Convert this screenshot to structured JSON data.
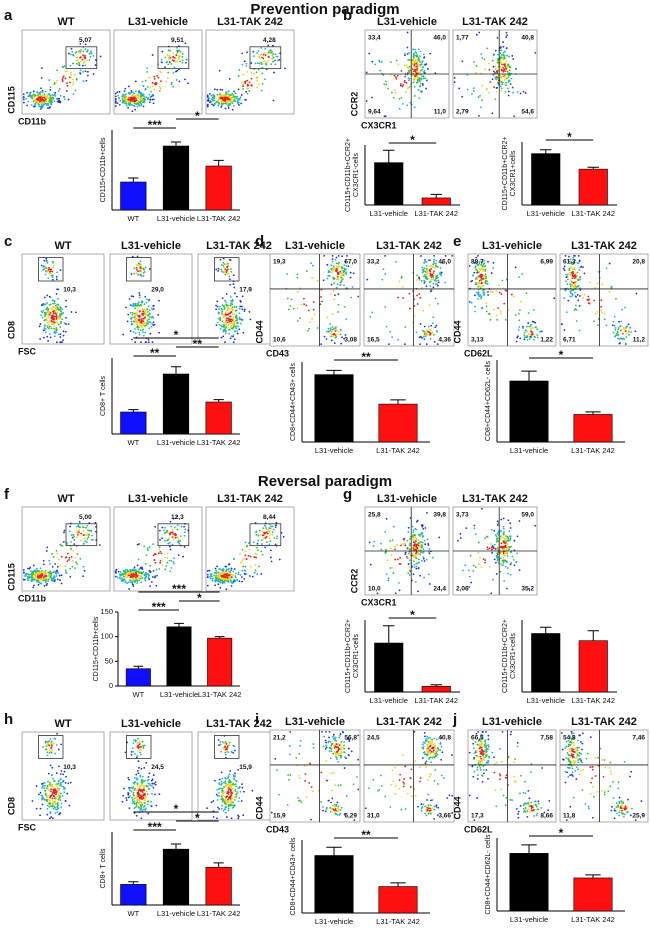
{
  "headings": [
    "Prevention paradigm",
    "Reversal paradigm"
  ],
  "panels": [
    {
      "letter": "a",
      "y_label": "CD115",
      "x_label": "CD11b",
      "plots": [
        {
          "title": "WT",
          "gate": "5,07"
        },
        {
          "title": "L31-vehicle",
          "gate": "9,51"
        },
        {
          "title": "L31-TAK 242",
          "gate": "4,28"
        }
      ]
    },
    {
      "letter": "b",
      "y_label": "CCR2",
      "x_label": "CX3CR1",
      "plots": [
        {
          "title": "L31-vehicle",
          "quadrants": [
            "33,4",
            "46,0",
            "9,64",
            "11,0"
          ]
        },
        {
          "title": "L31-TAK 242",
          "quadrants": [
            "1,77",
            "40,8",
            "2,79",
            "54,6"
          ]
        }
      ]
    },
    {
      "letter": "c",
      "y_label": "CD8",
      "x_label": "FSC",
      "plots": [
        {
          "title": "WT",
          "gate": "10,3"
        },
        {
          "title": "L31-vehicle",
          "gate": "29,0"
        },
        {
          "title": "L31-TAK 242",
          "gate": "17,9"
        }
      ]
    },
    {
      "letter": "d",
      "y_label": "CD44",
      "x_label": "CD43",
      "plots": [
        {
          "title": "L31-vehicle",
          "quadrants": [
            "19,3",
            "67,0",
            "10,6",
            "3,08"
          ]
        },
        {
          "title": "L31-TAK 242",
          "quadrants": [
            "33,2",
            "46,0",
            "16,5",
            "4,36"
          ]
        }
      ]
    },
    {
      "letter": "e",
      "y_label": "CD44",
      "x_label": "CD62L",
      "plots": [
        {
          "title": "L31-vehicle",
          "quadrants": [
            "88,7",
            "6,99",
            "3,13",
            "1,22"
          ]
        },
        {
          "title": "L31-TAK 242",
          "quadrants": [
            "61,3",
            "20,8",
            "6,71",
            "11,2"
          ]
        }
      ]
    },
    {
      "letter": "f",
      "y_label": "CD115",
      "x_label": "CD11b",
      "plots": [
        {
          "title": "WT",
          "gate": "5,00"
        },
        {
          "title": "L31-vehicle",
          "gate": "12,3"
        },
        {
          "title": "L31-TAK 242",
          "gate": "8,44"
        }
      ]
    },
    {
      "letter": "g",
      "y_label": "CCR2",
      "x_label": "CX3CR1",
      "plots": [
        {
          "title": "L31-vehicle",
          "quadrants": [
            "25,8",
            "39,8",
            "10,0",
            "24,4"
          ]
        },
        {
          "title": "L31-TAK 242",
          "quadrants": [
            "3,73",
            "59,0",
            "2,06",
            "35,2"
          ]
        }
      ]
    },
    {
      "letter": "h",
      "y_label": "CD8",
      "x_label": "FSC",
      "plots": [
        {
          "title": "WT",
          "gate": "10,3"
        },
        {
          "title": "L31-vehicle",
          "gate": "24,5"
        },
        {
          "title": "L31-TAK 242",
          "gate": "15,9"
        }
      ]
    },
    {
      "letter": "i",
      "y_label": "CD44",
      "x_label": "CD43",
      "plots": [
        {
          "title": "L31-vehicle",
          "quadrants": [
            "21,2",
            "56,8",
            "15,9",
            "6,29"
          ]
        },
        {
          "title": "L31-TAK 242",
          "quadrants": [
            "24,5",
            "40,8",
            "31,0",
            "3,66"
          ]
        }
      ]
    },
    {
      "letter": "j",
      "y_label": "CD44",
      "x_label": "CD62L",
      "plots": [
        {
          "title": "L31-vehicle",
          "quadrants": [
            "66,5",
            "7,58",
            "17,3",
            "8,66"
          ]
        },
        {
          "title": "L31-TAK 242",
          "quadrants": [
            "54,8",
            "7,46",
            "11,8",
            "25,9"
          ]
        }
      ]
    }
  ],
  "chart_data": [
    {
      "type": "bar",
      "ylabel": [
        "CD115+CD11b+cells"
      ],
      "categories": [
        "WT",
        "L31-vehicle",
        "L31-TAK 242"
      ],
      "values": [
        35,
        80,
        55
      ],
      "errors": [
        5,
        5,
        7
      ],
      "colors": [
        "#1010ff",
        "#000000",
        "#ff1010"
      ],
      "ylim": [
        0,
        100
      ],
      "significance": [
        {
          "label": "***",
          "from": 0,
          "to": 1
        },
        {
          "label": "*",
          "from": 1,
          "to": 2
        }
      ]
    },
    {
      "type": "bar",
      "ylabel": [
        "CD115+CD11b+CCR2+",
        "CX3CR1-cells"
      ],
      "categories": [
        "L31-vehicle",
        "L31-TAK 242"
      ],
      "values": [
        12,
        2
      ],
      "errors": [
        3.5,
        1
      ],
      "colors": [
        "#000000",
        "#ff1010"
      ],
      "ylim": [
        0,
        17
      ],
      "significance": [
        {
          "label": "*",
          "from": 0,
          "to": 1
        }
      ]
    },
    {
      "type": "bar",
      "ylabel": [
        "CD115+CD11b+CCR2+",
        "CX3CR1+cells"
      ],
      "categories": [
        "L31-vehicle",
        "L31-TAK 242"
      ],
      "values": [
        53,
        37
      ],
      "errors": [
        4,
        2
      ],
      "colors": [
        "#000000",
        "#ff1010"
      ],
      "ylim": [
        0,
        65
      ],
      "significance": [
        {
          "label": "*",
          "from": 0,
          "to": 1
        }
      ]
    },
    {
      "type": "bar",
      "ylabel": [
        "CD8+ T cells"
      ],
      "categories": [
        "WT",
        "L31-vehicle",
        "L31-TAK 242"
      ],
      "values": [
        55,
        150,
        80
      ],
      "errors": [
        6,
        18,
        6
      ],
      "colors": [
        "#1010ff",
        "#000000",
        "#ff1010"
      ],
      "ylim": [
        0,
        190
      ],
      "significance": [
        {
          "label": "**",
          "from": 0,
          "to": 1
        },
        {
          "label": "**",
          "from": 1,
          "to": 2
        },
        {
          "label": "*",
          "from": 0,
          "to": 2
        }
      ]
    },
    {
      "type": "bar",
      "ylabel": [
        "CD8+CD44+CD43+ cells"
      ],
      "categories": [
        "L31-vehicle",
        "L31-TAK 242"
      ],
      "values": [
        80,
        45
      ],
      "errors": [
        5,
        5
      ],
      "colors": [
        "#000000",
        "#ff1010"
      ],
      "ylim": [
        0,
        95
      ],
      "significance": [
        {
          "label": "**",
          "from": 0,
          "to": 1
        }
      ]
    },
    {
      "type": "bar",
      "ylabel": [
        "CD8+CD44+CD62L- cells"
      ],
      "categories": [
        "L31-vehicle",
        "L31-TAK 242"
      ],
      "values": [
        93,
        42
      ],
      "errors": [
        15,
        4
      ],
      "colors": [
        "#000000",
        "#ff1010"
      ],
      "ylim": [
        0,
        125
      ],
      "significance": [
        {
          "label": "*",
          "from": 0,
          "to": 1
        }
      ]
    },
    {
      "type": "bar",
      "ylabel": [
        "CD115+CD11b+cells"
      ],
      "categories": [
        "WT",
        "L31-vehicle",
        "L31-TAK 242"
      ],
      "values": [
        35,
        120,
        97
      ],
      "errors": [
        5,
        7,
        3
      ],
      "colors": [
        "#1010ff",
        "#000000",
        "#ff1010"
      ],
      "ylim": [
        0,
        150
      ],
      "yticks": [
        0,
        50,
        100,
        150
      ],
      "significance": [
        {
          "label": "***",
          "from": 0,
          "to": 1
        },
        {
          "label": "*",
          "from": 1,
          "to": 2
        },
        {
          "label": "***",
          "from": 0,
          "to": 2
        }
      ]
    },
    {
      "type": "bar",
      "ylabel": [
        "CD115+CD11b+CCR2+",
        "CX3CR1-cells"
      ],
      "categories": [
        "L31-vehicle",
        "L31-TAK 242"
      ],
      "values": [
        17,
        2
      ],
      "errors": [
        6,
        0.5
      ],
      "colors": [
        "#000000",
        "#ff1010"
      ],
      "ylim": [
        0,
        25
      ],
      "significance": [
        {
          "label": "*",
          "from": 0,
          "to": 1
        }
      ]
    },
    {
      "type": "bar",
      "ylabel": [
        "CD115+CD11b+CCR2+",
        "CX3CR1+cells"
      ],
      "categories": [
        "L31-vehicle",
        "L31-TAK 242"
      ],
      "values": [
        65,
        57
      ],
      "errors": [
        7,
        11
      ],
      "colors": [
        "#000000",
        "#ff1010"
      ],
      "ylim": [
        0,
        80
      ],
      "significance": []
    },
    {
      "type": "bar",
      "ylabel": [
        "CD8+ T cells"
      ],
      "categories": [
        "WT",
        "L31-vehicle",
        "L31-TAK 242"
      ],
      "values": [
        48,
        130,
        88
      ],
      "errors": [
        6,
        12,
        10
      ],
      "colors": [
        "#1010ff",
        "#000000",
        "#ff1010"
      ],
      "ylim": [
        0,
        170
      ],
      "significance": [
        {
          "label": "***",
          "from": 0,
          "to": 1
        },
        {
          "label": "*",
          "from": 1,
          "to": 2
        },
        {
          "label": "*",
          "from": 0,
          "to": 2
        }
      ]
    },
    {
      "type": "bar",
      "ylabel": [
        "CD8+CD44+CD43+ cells"
      ],
      "categories": [
        "L31-vehicle",
        "L31-TAK 242"
      ],
      "values": [
        63,
        29
      ],
      "errors": [
        9,
        4
      ],
      "colors": [
        "#000000",
        "#ff1010"
      ],
      "ylim": [
        0,
        80
      ],
      "significance": [
        {
          "label": "**",
          "from": 0,
          "to": 1
        }
      ]
    },
    {
      "type": "bar",
      "ylabel": [
        "CD8+CD44+CD62L- cells"
      ],
      "categories": [
        "L31-vehicle",
        "L31-TAK 242"
      ],
      "values": [
        75,
        43
      ],
      "errors": [
        11,
        4
      ],
      "colors": [
        "#000000",
        "#ff1010"
      ],
      "ylim": [
        0,
        95
      ],
      "significance": [
        {
          "label": "*",
          "from": 0,
          "to": 1
        }
      ]
    }
  ]
}
